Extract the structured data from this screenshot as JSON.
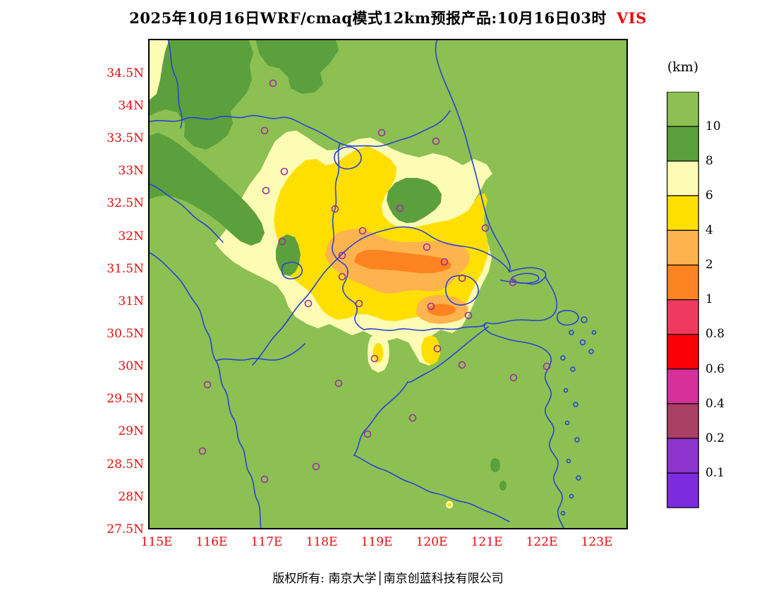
{
  "title": {
    "main": "2025年10月16日WRF/cmaq模式12km预报产品:10月16日03时",
    "variable": "VIS"
  },
  "axes": {
    "y_labels": [
      "34.5N",
      "34N",
      "33.5N",
      "33N",
      "32.5N",
      "32N",
      "31.5N",
      "31N",
      "30.5N",
      "30N",
      "29.5N",
      "29N",
      "28.5N",
      "28N",
      "27.5N"
    ],
    "x_labels": [
      "115E",
      "116E",
      "117E",
      "118E",
      "119E",
      "120E",
      "121E",
      "122E",
      "123E"
    ]
  },
  "colorbar": {
    "unit": "(km)",
    "tick_labels": [
      "10",
      "8",
      "6",
      "4",
      "2",
      "1",
      "0.8",
      "0.6",
      "0.4",
      "0.2",
      "0.1"
    ],
    "colors": [
      "#8cc052",
      "#5ba03c",
      "#fcfcb4",
      "#ffdf00",
      "#fdb44e",
      "#fc8320",
      "#ef3a5f",
      "#fb0007",
      "#d6309a",
      "#a93f63",
      "#8d33ce",
      "#7d2be0"
    ]
  },
  "palette": {
    "background": "#8cc052",
    "green_dark": "#5ba03c",
    "yellow_pale": "#fcfcb4",
    "yellow": "#ffdf00",
    "orange_light": "#fdb44e",
    "orange": "#fc8320",
    "boundary_blue": "#2743d6",
    "station_purple": "#a02ca0",
    "axis_red": "#e80c0c",
    "frame": "#000000"
  },
  "stations": {
    "points": [
      [
        177,
        63
      ],
      [
        165,
        130
      ],
      [
        331,
        133
      ],
      [
        408,
        145
      ],
      [
        193,
        188
      ],
      [
        167,
        215
      ],
      [
        265,
        241
      ],
      [
        357,
        240
      ],
      [
        478,
        268
      ],
      [
        304,
        272
      ],
      [
        190,
        287
      ],
      [
        395,
        295
      ],
      [
        275,
        307
      ],
      [
        420,
        316
      ],
      [
        275,
        337
      ],
      [
        445,
        339
      ],
      [
        517,
        345
      ],
      [
        227,
        375
      ],
      [
        299,
        375
      ],
      [
        401,
        379
      ],
      [
        454,
        392
      ],
      [
        410,
        439
      ],
      [
        321,
        453
      ],
      [
        445,
        462
      ],
      [
        565,
        464
      ],
      [
        518,
        480
      ],
      [
        84,
        490
      ],
      [
        270,
        488
      ],
      [
        375,
        537
      ],
      [
        311,
        560
      ],
      [
        77,
        584
      ],
      [
        238,
        606
      ],
      [
        165,
        624
      ]
    ]
  },
  "footer": {
    "copyright": "版权所有: 南京大学│南京创蓝科技有限公司"
  },
  "chart_data": {
    "type": "filled_contour_map",
    "title": "2025年10月16日WRF/cmaq模式12km预报产品:10月16日03时 VIS",
    "variable": "VIS (visibility)",
    "unit": "km",
    "model": "WRF/cmaq 12km",
    "valid_time_label": "10月16日03时",
    "lon_range_deg_e": [
      115,
      123.7
    ],
    "lat_range_deg_n": [
      27.5,
      35.0
    ],
    "contour_levels_km": [
      0.1,
      0.2,
      0.4,
      0.6,
      0.8,
      1,
      2,
      4,
      6,
      8,
      10
    ],
    "level_colors_low_to_high": [
      "#7d2be0",
      "#8d33ce",
      "#a93f63",
      "#d6309a",
      "#fb0007",
      "#ef3a5f",
      "#fc8320",
      "#fdb44e",
      "#ffdf00",
      "#fcfcb4",
      "#5ba03c",
      "#8cc052"
    ],
    "regions": [
      {
        "visibility_km": "1-2",
        "where": "east-west orange core along the Yangtze, about 118.7E-120.5E, 31.4N-31.9N, plus a small core near 120.2E, 30.9N"
      },
      {
        "visibility_km": "2-4",
        "where": "light-orange band around the core, about 118.1E-121.3E, 31.2N-32.2N, and near 120.3E, 30.8N-31.0N"
      },
      {
        "visibility_km": "4-6",
        "where": "yellow area over central/southern Jiangsu and eastern Anhui, ~117.3E-121.2E, 30.8N-32.9N; small spot near 119.1E, 30.2N; tiny spot near 119.5E, 27.9N"
      },
      {
        "visibility_km": "6-8",
        "where": "broad pale-yellow area ~116.2E-121.4E, 30.6N-33.6N plus a strip in the NW corner"
      },
      {
        "visibility_km": "8-10",
        "where": "dark-green patches: NW corner mass, band along the northern edge, diagonal band on the west edge, blob near 119.6E, 32.3N, small SE coastal islands"
      },
      {
        "visibility_km": ">10",
        "where": "remainder of the domain (light-green background)"
      }
    ],
    "station_markers_count": 33,
    "legend_position": "right",
    "grid": false
  }
}
